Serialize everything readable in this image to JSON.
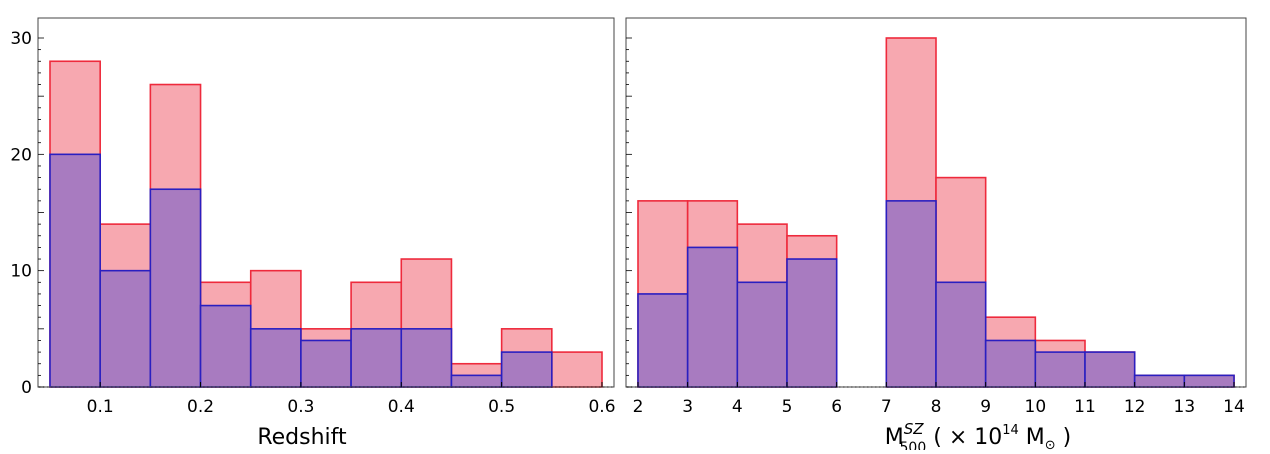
{
  "chart_data": [
    {
      "type": "bar",
      "xlabel": "Redshift",
      "ylabel": "",
      "xlim": [
        0.05,
        0.6
      ],
      "ylim": [
        0,
        30
      ],
      "xticks": [
        "0.1",
        "0.2",
        "0.3",
        "0.4",
        "0.5",
        "0.6"
      ],
      "yticks": [
        "0",
        "10",
        "20",
        "30"
      ],
      "bin_edges": [
        0.05,
        0.1,
        0.15,
        0.2,
        0.25,
        0.3,
        0.35,
        0.4,
        0.45,
        0.5,
        0.55,
        0.6
      ],
      "series": [
        {
          "values": [
            28,
            14,
            26,
            9,
            10,
            5,
            9,
            11,
            2,
            5,
            3
          ],
          "fill": "#f7a8b0",
          "edge": "#ee2a3c"
        },
        {
          "values": [
            20,
            10,
            17,
            7,
            5,
            4,
            5,
            5,
            1,
            3,
            0
          ],
          "fill": "#a87bc0",
          "edge": "#2a1fc0"
        }
      ],
      "grid": false,
      "legend": "none"
    },
    {
      "type": "bar",
      "xlabel_parts": {
        "base": "M",
        "sup": "SZ",
        "sub": "500",
        "mid": " ( × 10",
        "exp": "14",
        "unit": " M",
        "sun": "⊙",
        "close": " )"
      },
      "ylabel": "",
      "xlim": [
        2,
        14
      ],
      "ylim": [
        0,
        30
      ],
      "xticks": [
        "2",
        "3",
        "4",
        "5",
        "6",
        "7",
        "8",
        "9",
        "10",
        "11",
        "12",
        "13",
        "14"
      ],
      "yticks": [],
      "bin_edges": [
        2,
        3,
        4,
        5,
        6,
        7,
        8,
        9,
        10,
        11,
        12,
        13,
        14
      ],
      "series": [
        {
          "values": [
            16,
            16,
            14,
            13,
            0,
            30,
            18,
            6,
            4,
            3,
            1,
            1
          ],
          "fill": "#f7a8b0",
          "edge": "#ee2a3c"
        },
        {
          "values": [
            8,
            12,
            9,
            11,
            0,
            16,
            9,
            4,
            3,
            3,
            1,
            1
          ],
          "fill": "#a87bc0",
          "edge": "#2a1fc0"
        }
      ],
      "grid": false,
      "legend": "none"
    }
  ]
}
